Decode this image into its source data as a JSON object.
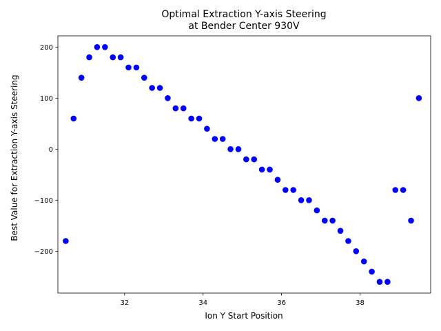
{
  "chart_data": {
    "type": "scatter",
    "title": "Optimal Extraction Y-axis Steering",
    "subtitle": "at Bender Center 930V",
    "xlabel": "Ion Y Start Position",
    "ylabel": "Best Value for Extraction Y-axis Steering",
    "xlim": [
      30.3,
      39.8
    ],
    "ylim": [
      -282,
      222
    ],
    "xticks": [
      32,
      34,
      36,
      38
    ],
    "yticks": [
      -200,
      -100,
      0,
      100,
      200
    ],
    "ytick_labels": [
      "−200",
      "−100",
      "0",
      "100",
      "200"
    ],
    "grid": false,
    "marker_color": "#0000ff",
    "series": [
      {
        "points": [
          [
            30.5,
            -180
          ],
          [
            30.7,
            60
          ],
          [
            30.9,
            140
          ],
          [
            31.1,
            180
          ],
          [
            31.3,
            200
          ],
          [
            31.5,
            200
          ],
          [
            31.7,
            180
          ],
          [
            31.9,
            180
          ],
          [
            32.1,
            160
          ],
          [
            32.3,
            160
          ],
          [
            32.5,
            140
          ],
          [
            32.7,
            120
          ],
          [
            32.9,
            120
          ],
          [
            33.1,
            100
          ],
          [
            33.3,
            80
          ],
          [
            33.5,
            80
          ],
          [
            33.7,
            60
          ],
          [
            33.9,
            60
          ],
          [
            34.1,
            40
          ],
          [
            34.3,
            20
          ],
          [
            34.5,
            20
          ],
          [
            34.7,
            0
          ],
          [
            34.9,
            0
          ],
          [
            35.1,
            -20
          ],
          [
            35.3,
            -20
          ],
          [
            35.5,
            -40
          ],
          [
            35.7,
            -40
          ],
          [
            35.9,
            -60
          ],
          [
            36.1,
            -80
          ],
          [
            36.3,
            -80
          ],
          [
            36.5,
            -100
          ],
          [
            36.7,
            -100
          ],
          [
            36.9,
            -120
          ],
          [
            37.1,
            -140
          ],
          [
            37.3,
            -140
          ],
          [
            37.5,
            -160
          ],
          [
            37.7,
            -180
          ],
          [
            37.9,
            -200
          ],
          [
            38.1,
            -220
          ],
          [
            38.3,
            -240
          ],
          [
            38.5,
            -260
          ],
          [
            38.7,
            -260
          ],
          [
            38.9,
            -80
          ],
          [
            39.1,
            -80
          ],
          [
            39.3,
            -140
          ],
          [
            39.5,
            100
          ]
        ]
      }
    ]
  }
}
